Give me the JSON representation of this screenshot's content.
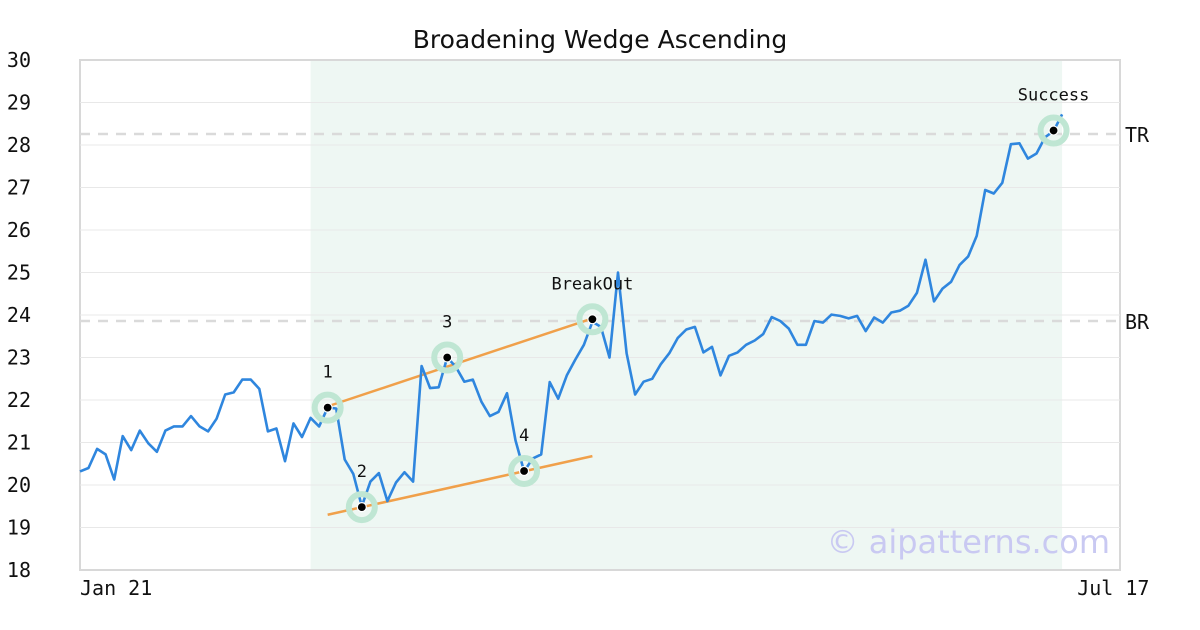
{
  "chart_data": {
    "type": "line",
    "title": "Broadening Wedge Ascending",
    "watermark": "© aipatterns.com",
    "ylim": [
      18,
      30
    ],
    "yticks": [
      18,
      19,
      20,
      21,
      22,
      23,
      24,
      25,
      26,
      27,
      28,
      29,
      30
    ],
    "xlim": [
      0,
      125
    ],
    "xticks": [
      {
        "x": 0,
        "label": "Jan 21"
      },
      {
        "x": 121,
        "label": "Jul 17"
      }
    ],
    "grid": true,
    "series": [
      {
        "color": "#2f86de",
        "values": [
          20.32,
          20.4,
          20.85,
          20.72,
          20.13,
          21.15,
          20.82,
          21.28,
          20.98,
          20.78,
          21.28,
          21.38,
          21.38,
          21.62,
          21.38,
          21.26,
          21.56,
          22.13,
          22.18,
          22.48,
          22.48,
          22.26,
          21.26,
          21.33,
          20.56,
          21.45,
          21.13,
          21.58,
          21.38,
          21.82,
          21.8,
          20.6,
          20.26,
          19.5,
          20.08,
          20.28,
          19.62,
          20.06,
          20.3,
          20.08,
          22.8,
          22.28,
          22.3,
          23,
          22.78,
          22.43,
          22.48,
          21.96,
          21.62,
          21.72,
          22.16,
          21.05,
          20.32,
          20.62,
          20.72,
          22.42,
          22.03,
          22.58,
          22.95,
          23.3,
          23.84,
          23.72,
          23.0,
          25.0,
          23.1,
          22.13,
          22.43,
          22.5,
          22.84,
          23.1,
          23.46,
          23.66,
          23.72,
          23.12,
          23.25,
          22.58,
          23.04,
          23.12,
          23.3,
          23.4,
          23.55,
          23.95,
          23.86,
          23.68,
          23.3,
          23.3,
          23.86,
          23.82,
          24.01,
          23.98,
          23.92,
          23.98,
          23.62,
          23.94,
          23.82,
          24.06,
          24.1,
          24.22,
          24.52,
          25.3,
          24.32,
          24.62,
          24.78,
          25.18,
          25.38,
          25.86,
          26.94,
          26.86,
          27.11,
          28.02,
          28.04,
          27.68,
          27.8,
          28.18,
          28.33,
          28.72
        ]
      }
    ],
    "reference_lines": [
      {
        "label": "TR",
        "y": 28.26
      },
      {
        "label": "BR",
        "y": 23.86
      }
    ],
    "shaded_region": {
      "x_start": 27,
      "x_end": 115,
      "color": "#eef7f3"
    },
    "trendlines": [
      {
        "color": "#f0a04a",
        "x1": 29,
        "y1": 21.85,
        "x2": 60,
        "y2": 23.92
      },
      {
        "color": "#f0a04a",
        "x1": 29,
        "y1": 19.3,
        "x2": 60,
        "y2": 20.68
      }
    ],
    "annotations": [
      {
        "label": "1",
        "x": 29,
        "y": 21.82,
        "label_dy": -30
      },
      {
        "label": "2",
        "x": 33,
        "y": 19.48,
        "label_dy": -30
      },
      {
        "label": "3",
        "x": 43,
        "y": 23.0,
        "label_dy": -30
      },
      {
        "label": "4",
        "x": 52,
        "y": 20.33,
        "label_dy": -30
      },
      {
        "label": "BreakOut",
        "x": 60,
        "y": 23.9,
        "label_dy": -30
      },
      {
        "label": "Success",
        "x": 114,
        "y": 28.34,
        "label_dy": -30
      }
    ]
  }
}
